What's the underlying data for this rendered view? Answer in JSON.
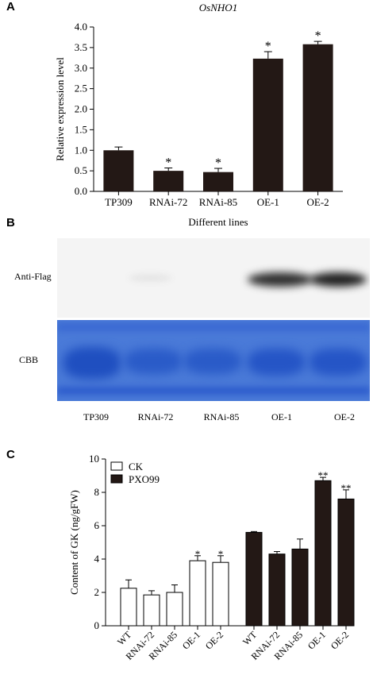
{
  "panels": {
    "a": {
      "letter": "A"
    },
    "b": {
      "letter": "B"
    },
    "c": {
      "letter": "C"
    }
  },
  "chart_data": [
    {
      "type": "bar",
      "title": "OsNHO1",
      "xlabel": "Different lines",
      "ylabel": "Relative expression level",
      "categories": [
        "TP309",
        "RNAi-72",
        "RNAi-85",
        "OE-1",
        "OE-2"
      ],
      "values": [
        1.0,
        0.5,
        0.47,
        3.23,
        3.58
      ],
      "errors": [
        0.08,
        0.07,
        0.09,
        0.17,
        0.07
      ],
      "annotations": [
        "",
        "*",
        "*",
        "*",
        "*"
      ],
      "ylim": [
        0,
        4.0
      ],
      "yticks": [
        0.0,
        0.5,
        1.0,
        1.5,
        2.0,
        2.5,
        3.0,
        3.5,
        4.0
      ],
      "ytick_labels": [
        "0.0",
        "0.5",
        "1.0",
        "1.5",
        "2.0",
        "2.5",
        "3.0",
        "3.5",
        "4.0"
      ],
      "bar_color": "#231815",
      "grid": false
    },
    {
      "type": "bar",
      "xlabel": "",
      "ylabel": "Content of GK (ng/gFW)",
      "categories": [
        "WT",
        "RNAi-72",
        "RNAi-85",
        "OE-1",
        "OE-2"
      ],
      "series": [
        {
          "name": "CK",
          "values": [
            2.25,
            1.85,
            2.0,
            3.9,
            3.8
          ],
          "errors": [
            0.5,
            0.25,
            0.45,
            0.3,
            0.4
          ],
          "annotations": [
            "",
            "",
            "",
            "*",
            "*"
          ],
          "fill": "#ffffff"
        },
        {
          "name": "PXO99",
          "values": [
            5.6,
            4.3,
            4.6,
            8.7,
            7.6
          ],
          "errors": [
            0.05,
            0.15,
            0.6,
            0.2,
            0.55
          ],
          "annotations": [
            "",
            "",
            "",
            "**",
            "**"
          ],
          "fill": "#231815"
        }
      ],
      "ylim": [
        0,
        10
      ],
      "yticks": [
        0,
        2,
        4,
        6,
        8,
        10
      ],
      "ytick_labels": [
        "0",
        "2",
        "4",
        "6",
        "8",
        "10"
      ],
      "legend_position": "top-left",
      "grid": false
    }
  ],
  "blot": {
    "rows": [
      {
        "label": "Anti-Flag",
        "band_intensity": [
          0.0,
          0.06,
          0.0,
          0.9,
          0.95
        ]
      },
      {
        "label": "CBB",
        "band_intensity": [
          1.0,
          0.85,
          0.85,
          0.9,
          0.9
        ]
      }
    ],
    "lanes": [
      "TP309",
      "RNAi-72",
      "RNAi-85",
      "OE-1",
      "OE-2"
    ],
    "colors": {
      "membrane": "#f4f4f4",
      "band": "#2b2b2b",
      "gel": "#3f6fd6",
      "gel_band": "#1d4fc4"
    }
  }
}
